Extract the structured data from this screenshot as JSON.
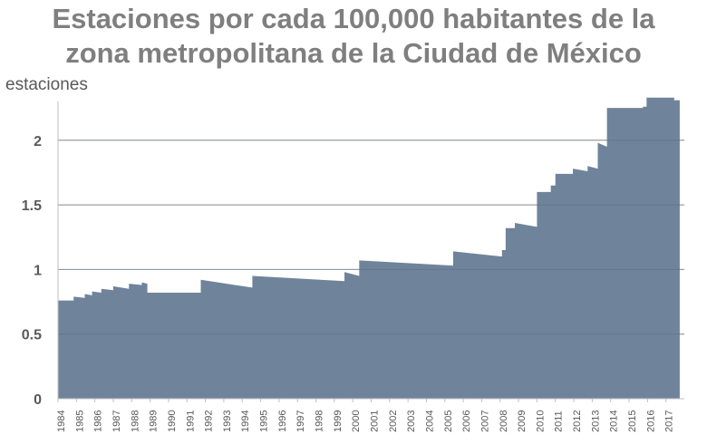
{
  "chart_data": {
    "type": "area",
    "title_line1": "Estaciones por cada 100,000 habitantes de la",
    "title_line2": "zona metropolitana de la Ciudad de México",
    "ylabel": "estaciones",
    "xlabel": "",
    "ylim": [
      0,
      2.3
    ],
    "yticks": [
      "0",
      "0.5",
      "1",
      "1.5",
      "2"
    ],
    "ytick_values": [
      0,
      0.5,
      1,
      1.5,
      2
    ],
    "grid": true,
    "x_categories": [
      "1984",
      "1985",
      "1986",
      "1987",
      "1988",
      "1989",
      "1990",
      "1991",
      "1992",
      "1993",
      "1994",
      "1995",
      "1996",
      "1997",
      "1998",
      "1999",
      "2000",
      "2001",
      "2002",
      "2003",
      "2004",
      "2005",
      "2006",
      "2007",
      "2008",
      "2009",
      "2010",
      "2011",
      "2012",
      "2013",
      "2014",
      "2015",
      "2016",
      "2017"
    ],
    "series": [
      {
        "color": "#6f849b",
        "x": [
          1984.0,
          1984.85,
          1984.85,
          1985.45,
          1985.45,
          1985.85,
          1985.85,
          1986.35,
          1986.35,
          1987.0,
          1987.0,
          1987.85,
          1987.85,
          1988.55,
          1988.55,
          1988.85,
          1988.85,
          1991.75,
          1991.75,
          1994.55,
          1994.55,
          1999.55,
          1999.55,
          2000.35,
          2000.35,
          2005.45,
          2005.45,
          2008.1,
          2008.1,
          2008.3,
          2008.3,
          2008.8,
          2008.8,
          2010.0,
          2010.0,
          2010.75,
          2010.75,
          2011.0,
          2011.0,
          2011.95,
          2011.95,
          2012.75,
          2012.75,
          2013.3,
          2013.3,
          2013.8,
          2013.8,
          2015.0,
          2015.0,
          2015.75,
          2015.75,
          2015.95,
          2015.95,
          2017.45,
          2017.45,
          2017.75,
          2017.75
        ],
        "y": [
          0.76,
          0.76,
          0.79,
          0.78,
          0.81,
          0.8,
          0.83,
          0.82,
          0.85,
          0.84,
          0.87,
          0.85,
          0.89,
          0.88,
          0.9,
          0.89,
          0.82,
          0.82,
          0.92,
          0.86,
          0.95,
          0.91,
          0.98,
          0.95,
          1.07,
          1.03,
          1.14,
          1.1,
          1.15,
          1.15,
          1.32,
          1.32,
          1.36,
          1.33,
          1.6,
          1.6,
          1.65,
          1.65,
          1.74,
          1.74,
          1.78,
          1.76,
          1.8,
          1.78,
          1.98,
          1.95,
          2.25,
          2.25,
          2.25,
          2.25,
          2.26,
          2.26,
          2.33,
          2.33,
          2.31,
          2.31,
          0.0
        ]
      }
    ]
  }
}
